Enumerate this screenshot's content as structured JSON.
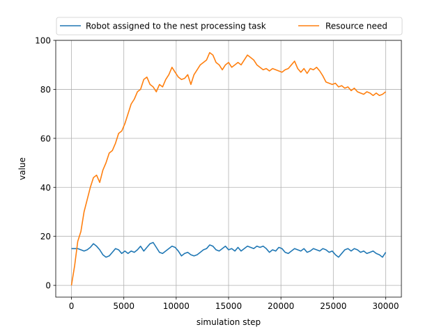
{
  "chart_data": {
    "type": "line",
    "title": "",
    "xlabel": "simulation step",
    "ylabel": "value",
    "xlim": [
      -1500,
      31500
    ],
    "ylim": [
      -4.8,
      100
    ],
    "xticks": [
      0,
      5000,
      10000,
      15000,
      20000,
      25000,
      30000
    ],
    "yticks": [
      0,
      20,
      40,
      60,
      80,
      100
    ],
    "grid": true,
    "legend": "top-center",
    "series": [
      {
        "name": "Robot assigned to the nest processing task",
        "color": "#1f77b4",
        "x": [
          0,
          300,
          600,
          900,
          1200,
          1500,
          1800,
          2100,
          2400,
          2700,
          3000,
          3300,
          3600,
          3900,
          4200,
          4500,
          4800,
          5100,
          5400,
          5700,
          6000,
          6300,
          6600,
          6900,
          7200,
          7500,
          7800,
          8100,
          8400,
          8700,
          9000,
          9300,
          9600,
          9900,
          10200,
          10500,
          10800,
          11100,
          11400,
          11700,
          12000,
          12300,
          12600,
          12900,
          13200,
          13500,
          13800,
          14100,
          14400,
          14700,
          15000,
          15300,
          15600,
          15900,
          16200,
          16500,
          16800,
          17100,
          17400,
          17700,
          18000,
          18300,
          18600,
          18900,
          19200,
          19500,
          19800,
          20100,
          20400,
          20700,
          21000,
          21300,
          21600,
          21900,
          22200,
          22500,
          22800,
          23100,
          23400,
          23700,
          24000,
          24300,
          24600,
          24900,
          25200,
          25500,
          25800,
          26100,
          26400,
          26700,
          27000,
          27300,
          27600,
          27900,
          28200,
          28500,
          28800,
          29100,
          29400,
          29700,
          30000
        ],
        "values": [
          15,
          15,
          15,
          14.5,
          14,
          14.5,
          15.5,
          17,
          16,
          14.5,
          12.5,
          11.5,
          12,
          13.5,
          15,
          14.5,
          13,
          14,
          13,
          14,
          13.5,
          14.5,
          16,
          14,
          15.5,
          17,
          17.5,
          15.5,
          13.5,
          13,
          14,
          15,
          16,
          15.5,
          14,
          12,
          13,
          13.5,
          12.5,
          12,
          12.5,
          13.5,
          14.5,
          15,
          16.5,
          16,
          14.5,
          14,
          15,
          16,
          14.5,
          15,
          14,
          15.5,
          14,
          15,
          16,
          15.5,
          15,
          16,
          15.5,
          16,
          15,
          13.5,
          14.5,
          14,
          15.5,
          15,
          13.5,
          13,
          14,
          15,
          14.5,
          14,
          15,
          13.5,
          14,
          15,
          14.5,
          14,
          15,
          14.5,
          13.5,
          14,
          12.5,
          11.5,
          13,
          14.5,
          15,
          14,
          15,
          14.5,
          13.5,
          14,
          13,
          13.5,
          14,
          13,
          12.5,
          11.5,
          13.5
        ]
      },
      {
        "name": "Resource need",
        "color": "#ff7f0e",
        "x": [
          0,
          300,
          600,
          900,
          1200,
          1500,
          1800,
          2100,
          2400,
          2700,
          3000,
          3300,
          3600,
          3900,
          4200,
          4500,
          4800,
          5100,
          5400,
          5700,
          6000,
          6300,
          6600,
          6900,
          7200,
          7500,
          7800,
          8100,
          8400,
          8700,
          9000,
          9300,
          9600,
          9900,
          10200,
          10500,
          10800,
          11100,
          11400,
          11700,
          12000,
          12300,
          12600,
          12900,
          13200,
          13500,
          13800,
          14100,
          14400,
          14700,
          15000,
          15300,
          15600,
          15900,
          16200,
          16500,
          16800,
          17100,
          17400,
          17700,
          18000,
          18300,
          18600,
          18900,
          19200,
          19500,
          19800,
          20100,
          20400,
          20700,
          21000,
          21300,
          21600,
          21900,
          22200,
          22500,
          22800,
          23100,
          23400,
          23700,
          24000,
          24300,
          24600,
          24900,
          25200,
          25500,
          25800,
          26100,
          26400,
          26700,
          27000,
          27300,
          27600,
          27900,
          28200,
          28500,
          28800,
          29100,
          29400,
          29700,
          30000
        ],
        "values": [
          0,
          8,
          18,
          22,
          30,
          35,
          40,
          44,
          45,
          42,
          47,
          50,
          54,
          55,
          58,
          62,
          63,
          66,
          70,
          74,
          76,
          79,
          80,
          84,
          85,
          82,
          81,
          79,
          82,
          81,
          84,
          86,
          89,
          87,
          85,
          84,
          84.5,
          86,
          82,
          86,
          88,
          90,
          91,
          92,
          95,
          94,
          91,
          90,
          88,
          90,
          91,
          89,
          90,
          91,
          90,
          92,
          94,
          93,
          92,
          90,
          89,
          88,
          88.5,
          87.5,
          88.5,
          88,
          87.5,
          87,
          88,
          88.5,
          90,
          91.5,
          88.5,
          87,
          88.5,
          86.5,
          88.5,
          88,
          89,
          87.5,
          85.5,
          83,
          82.5,
          82,
          82.5,
          81,
          81.5,
          80.5,
          81,
          79.5,
          80.5,
          79,
          78.5,
          78,
          79,
          78.5,
          77.5,
          78.5,
          77.5,
          78,
          79
        ]
      }
    ]
  }
}
